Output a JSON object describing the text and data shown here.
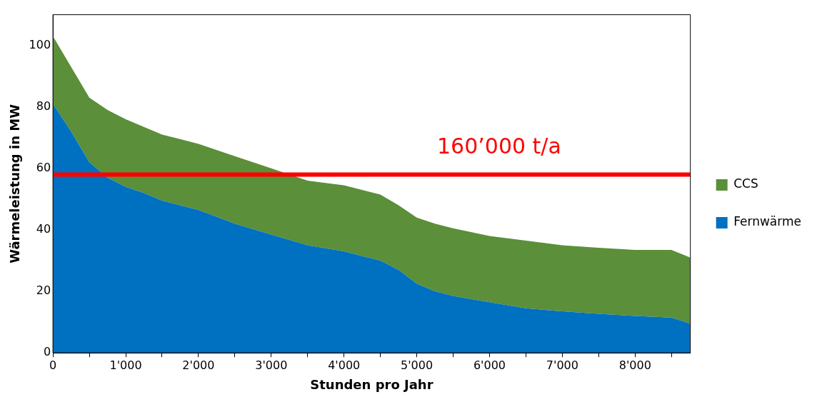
{
  "chart_data": {
    "type": "area",
    "stacked": true,
    "xlabel": "Stunden pro Jahr",
    "ylabel": "Wärmeleistung in MW",
    "x": [
      0,
      250,
      500,
      750,
      1000,
      1250,
      1500,
      2000,
      2500,
      3000,
      3500,
      4000,
      4500,
      4750,
      5000,
      5250,
      5500,
      6000,
      6500,
      7000,
      7500,
      8000,
      8500,
      8760
    ],
    "series": [
      {
        "name": "Fernwärme",
        "color": "#0070c0",
        "values": [
          81,
          72,
          62,
          57,
          54,
          52,
          49.5,
          46.5,
          42,
          38.5,
          35,
          33,
          30,
          27,
          22.5,
          20,
          18.5,
          16.5,
          14.5,
          13.5,
          12.7,
          12,
          11.5,
          9.5
        ]
      },
      {
        "name": "CCS",
        "color": "#5b8f3a",
        "values": [
          22,
          21,
          21,
          22,
          22,
          21.5,
          21.5,
          21.5,
          22,
          21.5,
          21,
          21.5,
          21.5,
          21,
          21.5,
          22,
          22,
          21.5,
          22,
          21.5,
          21.5,
          21.5,
          22,
          21.5
        ]
      }
    ],
    "xlim": [
      0,
      8760
    ],
    "ylim": [
      0,
      110
    ],
    "xticks": [
      0,
      {
        "value": 500,
        "label": null
      },
      {
        "value": 1000,
        "label": "1'000"
      },
      {
        "value": 1500,
        "label": null
      },
      {
        "value": 2000,
        "label": "2'000"
      },
      {
        "value": 2500,
        "label": null
      },
      {
        "value": 3000,
        "label": "3'000"
      },
      {
        "value": 3500,
        "label": null
      },
      {
        "value": 4000,
        "label": "4'000"
      },
      {
        "value": 4500,
        "label": null
      },
      {
        "value": 5000,
        "label": "5'000"
      },
      {
        "value": 5500,
        "label": null
      },
      {
        "value": 6000,
        "label": "6'000"
      },
      {
        "value": 6500,
        "label": null
      },
      {
        "value": 7000,
        "label": "7'000"
      },
      {
        "value": 7500,
        "label": null
      },
      {
        "value": 8000,
        "label": "8'000"
      },
      {
        "value": 8500,
        "label": null
      }
    ],
    "yticks": [
      0,
      20,
      40,
      60,
      80,
      100
    ],
    "ref_lines": [
      {
        "axis": "y",
        "value": 58,
        "label": "160’000 t/a",
        "color": "#ff0000"
      }
    ],
    "legend": "right",
    "grid": false
  }
}
